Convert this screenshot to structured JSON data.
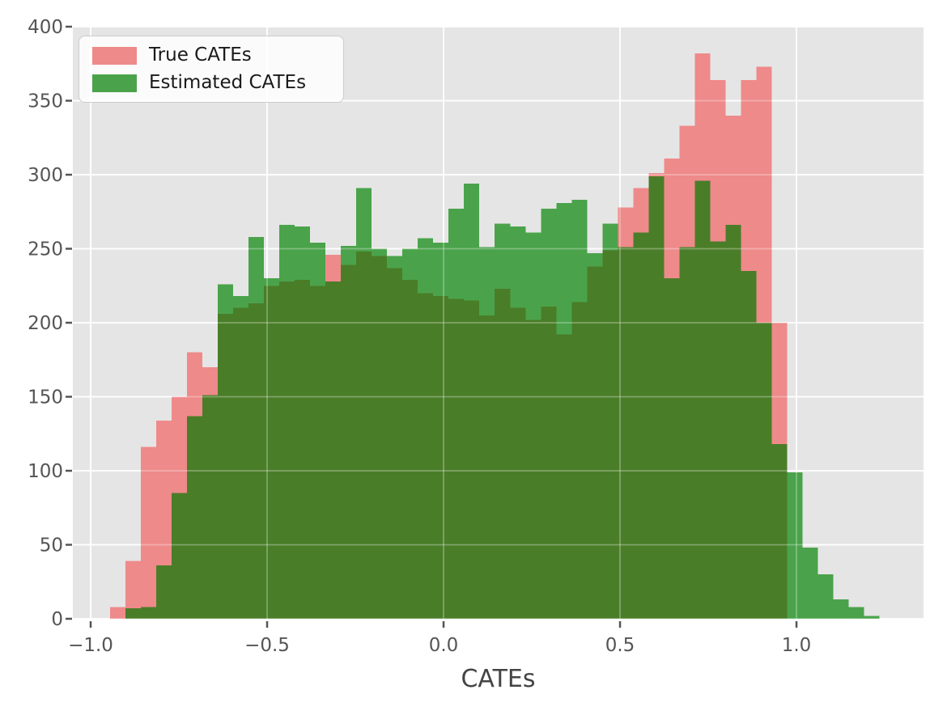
{
  "chart_data": {
    "type": "histogram",
    "title": "",
    "xlabel": "CATEs",
    "ylabel": "",
    "xlim": [
      -1.0505,
      1.36
    ],
    "ylim": [
      0,
      400
    ],
    "grid": true,
    "legend_position": "upper left",
    "bin_start": -0.945,
    "bin_width": 0.0436,
    "xticks": {
      "values": [
        -1.0,
        -0.5,
        0.0,
        0.5,
        1.0
      ],
      "labels": [
        "−1.0",
        "−0.5",
        "0.0",
        "0.5",
        "1.0"
      ]
    },
    "yticks": {
      "values": [
        0,
        50,
        100,
        150,
        200,
        250,
        300,
        350,
        400
      ],
      "labels": [
        "0",
        "50",
        "100",
        "150",
        "200",
        "250",
        "300",
        "350",
        "400"
      ]
    },
    "series": [
      {
        "name": "True CATEs",
        "color": "#ee8a8a",
        "values": [
          8,
          39,
          116,
          134,
          150,
          180,
          170,
          206,
          210,
          213,
          225,
          228,
          229,
          225,
          246,
          239,
          248,
          245,
          237,
          229,
          220,
          218,
          216,
          215,
          205,
          223,
          210,
          202,
          211,
          192,
          214,
          238,
          249,
          278,
          291,
          301,
          311,
          333,
          382,
          364,
          340,
          364,
          373,
          200,
          0,
          0,
          0,
          0,
          0,
          0
        ]
      },
      {
        "name": "Estimated CATEs",
        "color": "#4aa34a",
        "values": [
          0,
          7,
          8,
          36,
          85,
          137,
          151,
          226,
          218,
          258,
          230,
          266,
          265,
          254,
          228,
          252,
          291,
          250,
          245,
          250,
          257,
          254,
          277,
          294,
          251,
          267,
          265,
          261,
          277,
          281,
          283,
          247,
          267,
          251,
          261,
          299,
          230,
          251,
          296,
          255,
          266,
          235,
          200,
          118,
          99,
          48,
          30,
          13,
          8,
          2
        ]
      }
    ],
    "colors": {
      "axes_background": "#e5e5e5",
      "gridline": "#ffffff",
      "true_fill": "#ee8a8a",
      "estimated_fill": "#4aa34a",
      "overlap_fill": "#4a7d28",
      "tick_text": "#555555",
      "axis_label_text": "#444444"
    }
  }
}
